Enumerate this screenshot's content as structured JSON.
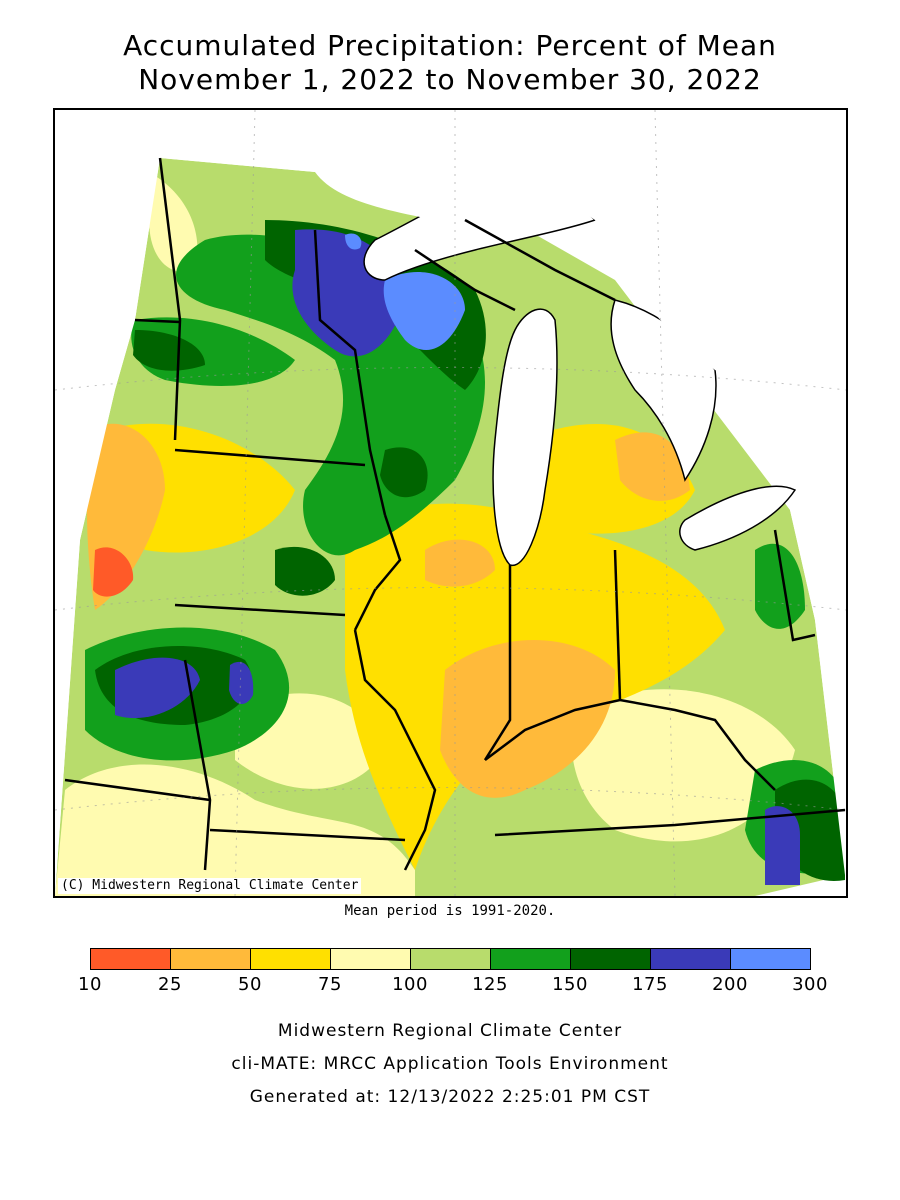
{
  "title": {
    "line1": "Accumulated Precipitation: Percent of Mean",
    "line2": "November 1, 2022 to November 30, 2022"
  },
  "map": {
    "credit": "(C) Midwestern Regional Climate Center",
    "mean_note": "Mean period is 1991-2020."
  },
  "legend": {
    "ticks": [
      "10",
      "25",
      "50",
      "75",
      "100",
      "125",
      "150",
      "175",
      "200",
      "300"
    ],
    "colors": [
      "#ff5a28",
      "#ffba3a",
      "#ffe000",
      "#fffbb0",
      "#b8dc6c",
      "#12a01c",
      "#006400",
      "#3a3ab8",
      "#5b8cff"
    ]
  },
  "footer": {
    "line1": "Midwestern Regional Climate Center",
    "line2": "cli-MATE: MRCC Application Tools Environment",
    "line3": "Generated at: 12/13/2022 2:25:01 PM CST"
  }
}
